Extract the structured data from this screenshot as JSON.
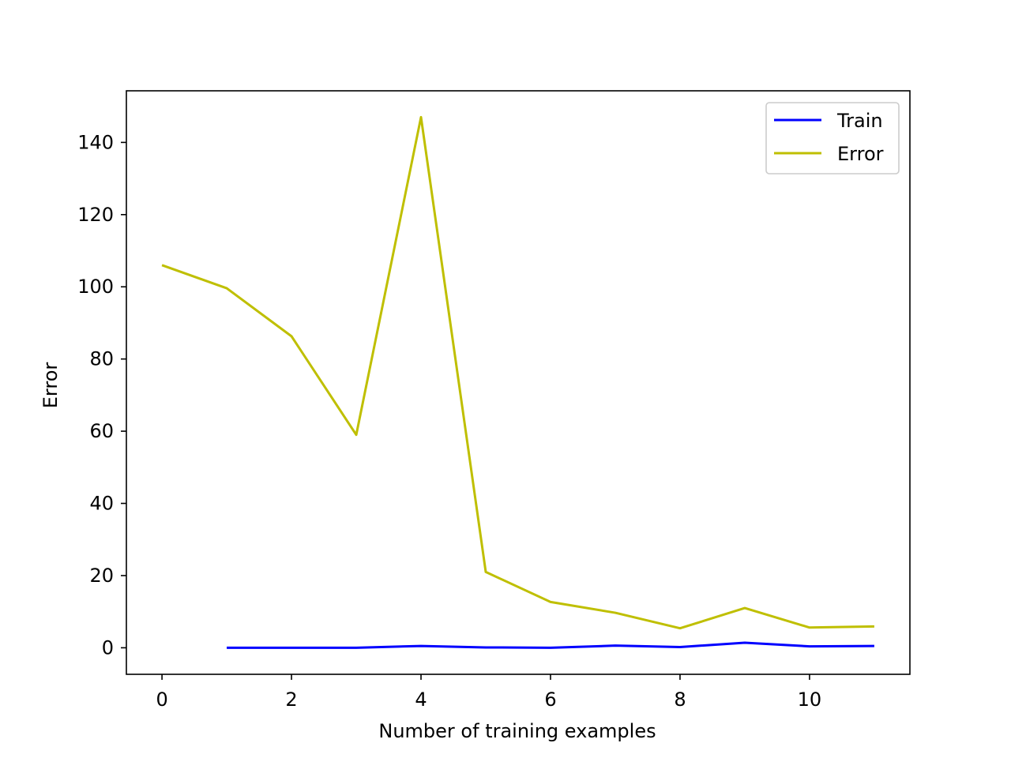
{
  "chart_data": {
    "type": "line",
    "title": "",
    "xlabel": "Number of training examples",
    "ylabel": "Error",
    "xlim": [
      -0.55,
      11.55
    ],
    "ylim": [
      -7.35,
      154.3
    ],
    "xticks": [
      0,
      2,
      4,
      6,
      8,
      10
    ],
    "yticks": [
      0,
      20,
      40,
      60,
      80,
      100,
      120,
      140
    ],
    "grid": false,
    "legend_position": "top-right",
    "series": [
      {
        "name": "Train",
        "color": "#0000ff",
        "x": [
          1,
          2,
          3,
          4,
          5,
          6,
          7,
          8,
          9,
          10,
          11
        ],
        "y": [
          0.0,
          0.0,
          0.0,
          0.5,
          0.1,
          0.0,
          0.6,
          0.2,
          1.4,
          0.4,
          0.5
        ]
      },
      {
        "name": "Error",
        "color": "#bfbf00",
        "x": [
          0,
          1,
          2,
          3,
          4,
          5,
          6,
          7,
          8,
          9,
          10,
          11
        ],
        "y": [
          106.0,
          99.6,
          86.3,
          59.0,
          147.0,
          21.0,
          12.7,
          9.7,
          5.4,
          11.0,
          5.6,
          5.9
        ]
      }
    ]
  }
}
